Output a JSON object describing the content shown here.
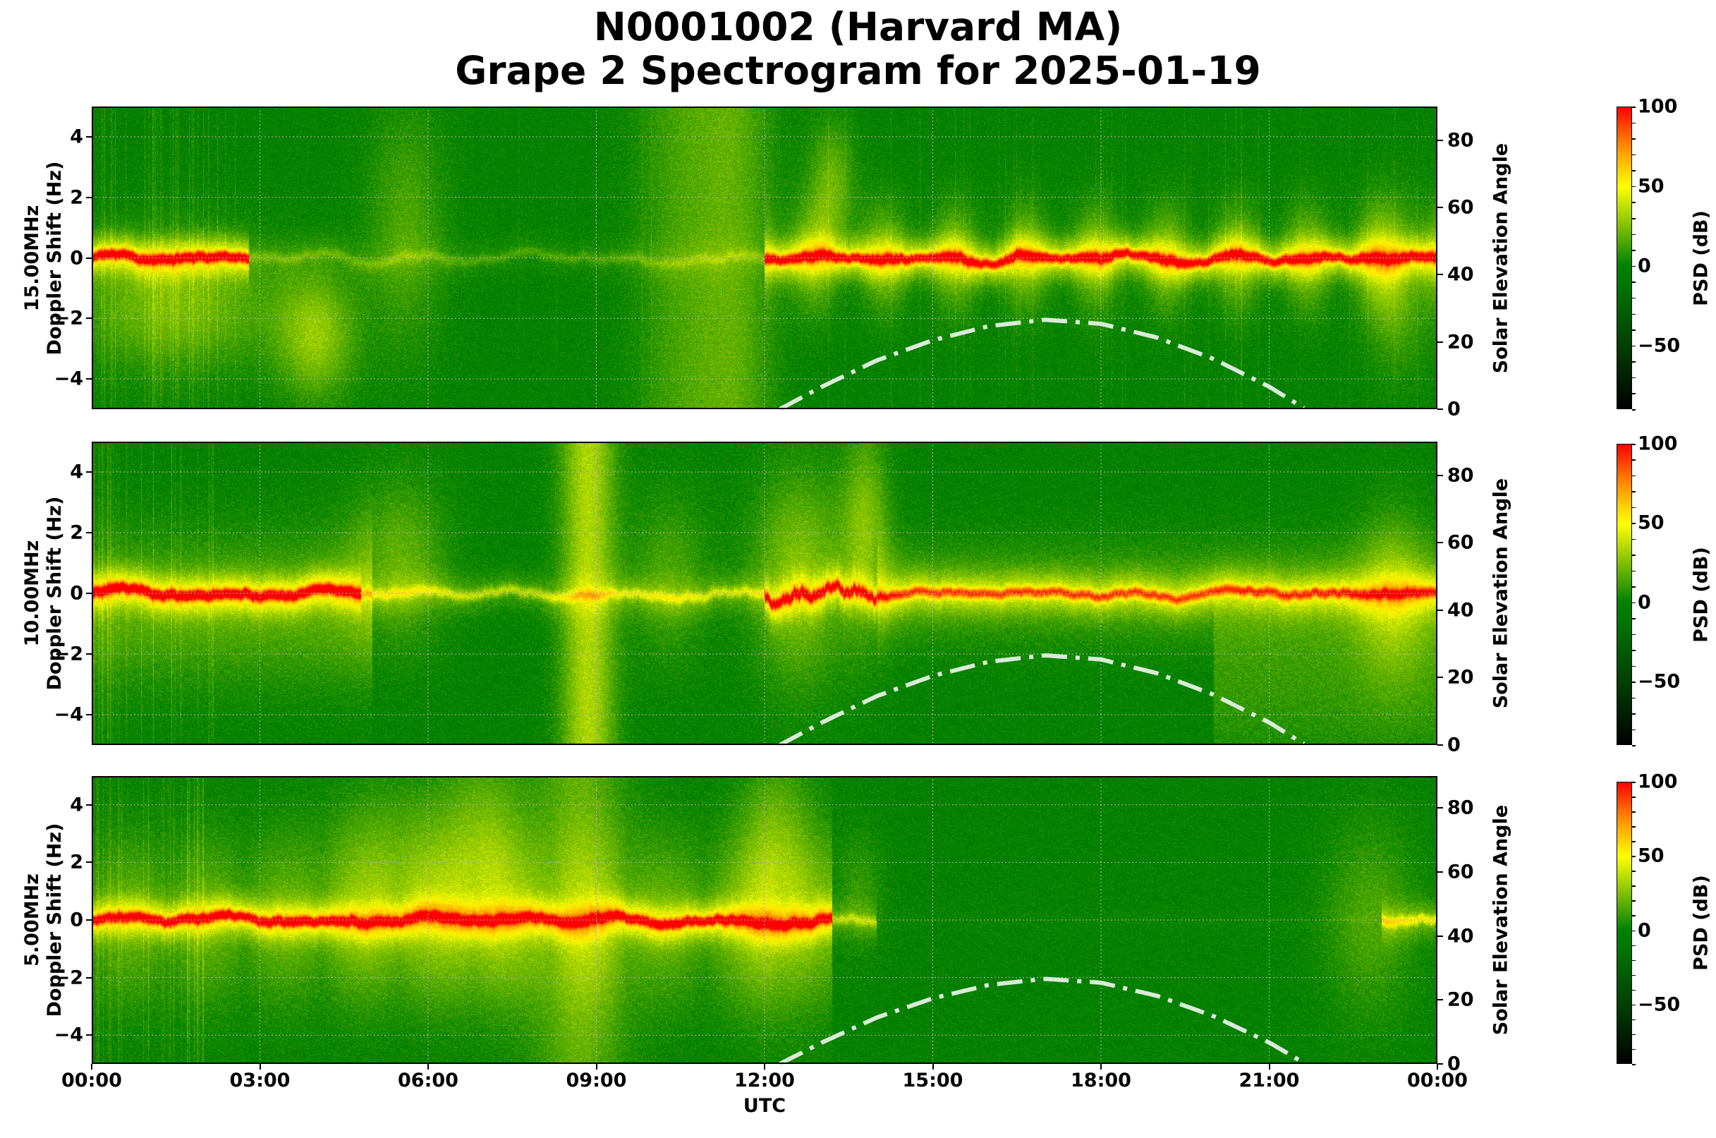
{
  "figure": {
    "title_line1": "N0001002 (Harvard MA)",
    "title_line2": "Grape 2 Spectrogram for 2025-01-19",
    "xlabel": "UTC",
    "x_ticks": [
      "00:00",
      "03:00",
      "06:00",
      "09:00",
      "12:00",
      "15:00",
      "18:00",
      "21:00",
      "00:00"
    ],
    "colors": {
      "colormap": [
        "#000000",
        "#004000",
        "#007800",
        "#008000",
        "#7fc000",
        "#ffff00",
        "#ff9000",
        "#ff0000"
      ],
      "solar_curve": "#d9ecd9",
      "grid": "#b0b0b0"
    }
  },
  "panels": [
    {
      "id": "p15",
      "frequency_label": "15.00MHz",
      "ylabel_line2": "Doppler Shift (Hz)",
      "right_label": "Solar Elevation Angle",
      "cbar_label": "PSD (dB)",
      "y_ticks": [
        "4",
        "2",
        "0",
        "−2",
        "−4"
      ],
      "right_ticks": [
        "80",
        "60",
        "40",
        "20",
        "0"
      ],
      "cbar_ticks": [
        "100",
        "50",
        "0",
        "−50"
      ]
    },
    {
      "id": "p10",
      "frequency_label": "10.00MHz",
      "ylabel_line2": "Doppler Shift (Hz)",
      "right_label": "Solar Elevation Angle",
      "cbar_label": "PSD (dB)",
      "y_ticks": [
        "4",
        "2",
        "0",
        "−2",
        "−4"
      ],
      "right_ticks": [
        "80",
        "60",
        "40",
        "20",
        "0"
      ],
      "cbar_ticks": [
        "100",
        "50",
        "0",
        "−50"
      ]
    },
    {
      "id": "p5",
      "frequency_label": "5.00MHz",
      "ylabel_line2": "Doppler Shift (Hz)",
      "right_label": "Solar Elevation Angle",
      "cbar_label": "PSD (dB)",
      "y_ticks": [
        "4",
        "2",
        "0",
        "−2",
        "−4"
      ],
      "right_ticks": [
        "80",
        "60",
        "40",
        "20",
        "0"
      ],
      "cbar_ticks": [
        "100",
        "50",
        "0",
        "−50"
      ]
    }
  ],
  "chart_data": {
    "type": "heatmap",
    "title": "N0001002 (Harvard MA) Grape 2 Spectrogram for 2025-01-19",
    "xlabel": "UTC",
    "x_ticks": [
      "00:00",
      "03:00",
      "06:00",
      "09:00",
      "12:00",
      "15:00",
      "18:00",
      "21:00",
      "00:00"
    ],
    "xlim_hours": [
      0,
      24
    ],
    "ylabel": "Doppler Shift (Hz)",
    "ylim": [
      -5,
      5
    ],
    "y_ticks": [
      -4,
      -2,
      0,
      2,
      4
    ],
    "secondary_ylabel": "Solar Elevation Angle",
    "secondary_ylim": [
      0,
      90
    ],
    "secondary_ticks": [
      0,
      20,
      40,
      60,
      80
    ],
    "colorbar": {
      "label": "PSD (dB)",
      "range": [
        -90,
        100
      ],
      "ticks": [
        -50,
        0,
        50,
        100
      ],
      "colormap": "black-green-yellow-red"
    },
    "grid": true,
    "solar_elevation_curve": {
      "style": "dash-dot, light green-white",
      "x_hours": [
        12.27,
        13,
        14,
        15,
        16,
        17,
        18,
        19,
        20,
        21,
        21.65
      ],
      "elevation_deg": [
        0,
        6.5,
        14.5,
        20.5,
        24.7,
        26.6,
        25.4,
        21.3,
        15,
        6.7,
        0
      ]
    },
    "panels": [
      {
        "name": "15.00MHz",
        "carrier_doppler_hz": 0,
        "notes": "Strong carrier near 0 Hz 00:00-02:45; weak/absent 03:00-12:00 with diffuse spread; strong broadened carrier 12:00-24:00 with spikes up to +3.5 Hz near 13:00"
      },
      {
        "name": "10.00MHz",
        "carrier_doppler_hz": 0,
        "notes": "Strong carrier 00:00-04:45; weak 05:00-12:00; bright broadband spread ~08:30-09:15; strong features 12:00-14:00 with spikes up to +5 Hz; carrier continues to 24:00; faint trace near -4 Hz"
      },
      {
        "name": "5.00MHz",
        "carrier_doppler_hz": 0,
        "notes": "Strong carrier 00:00-13:00 with spread features; carrier absent 13:30-23:00; weak return 23:00-24:00"
      }
    ]
  }
}
